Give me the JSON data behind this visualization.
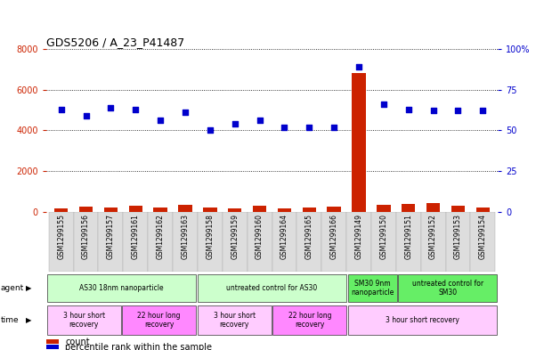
{
  "title": "GDS5206 / A_23_P41487",
  "samples": [
    "GSM1299155",
    "GSM1299156",
    "GSM1299157",
    "GSM1299161",
    "GSM1299162",
    "GSM1299163",
    "GSM1299158",
    "GSM1299159",
    "GSM1299160",
    "GSM1299164",
    "GSM1299165",
    "GSM1299166",
    "GSM1299149",
    "GSM1299150",
    "GSM1299151",
    "GSM1299152",
    "GSM1299153",
    "GSM1299154"
  ],
  "counts": [
    180,
    260,
    220,
    310,
    200,
    340,
    200,
    170,
    290,
    180,
    200,
    240,
    6800,
    340,
    370,
    430,
    300,
    200
  ],
  "percentiles": [
    63,
    59,
    64,
    63,
    56,
    61,
    50,
    54,
    56,
    52,
    52,
    52,
    89,
    66,
    63,
    62,
    62,
    62
  ],
  "ylim_left": [
    0,
    8000
  ],
  "ylim_right": [
    0,
    100
  ],
  "yticks_left": [
    0,
    2000,
    4000,
    6000,
    8000
  ],
  "yticks_right": [
    0,
    25,
    50,
    75,
    100
  ],
  "bar_color": "#cc2200",
  "dot_color": "#0000cc",
  "agent_groups": [
    {
      "label": "AS30 18nm nanoparticle",
      "start": 0,
      "end": 6,
      "color": "#ccffcc"
    },
    {
      "label": "untreated control for AS30",
      "start": 6,
      "end": 12,
      "color": "#ccffcc"
    },
    {
      "label": "SM30 9nm\nnanoparticle",
      "start": 12,
      "end": 14,
      "color": "#66ee66"
    },
    {
      "label": "untreated control for\nSM30",
      "start": 14,
      "end": 18,
      "color": "#66ee66"
    }
  ],
  "time_groups": [
    {
      "label": "3 hour short\nrecovery",
      "start": 0,
      "end": 3,
      "color": "#ffccff"
    },
    {
      "label": "22 hour long\nrecovery",
      "start": 3,
      "end": 6,
      "color": "#ff88ff"
    },
    {
      "label": "3 hour short\nrecovery",
      "start": 6,
      "end": 9,
      "color": "#ffccff"
    },
    {
      "label": "22 hour long\nrecovery",
      "start": 9,
      "end": 12,
      "color": "#ff88ff"
    },
    {
      "label": "3 hour short recovery",
      "start": 12,
      "end": 18,
      "color": "#ffccff"
    }
  ],
  "legend_items": [
    {
      "label": "count",
      "color": "#cc2200"
    },
    {
      "label": "percentile rank within the sample",
      "color": "#0000cc"
    }
  ],
  "agent_label": "agent",
  "time_label": "time",
  "bg_color": "#ffffff",
  "plot_bg": "#ffffff",
  "tick_color_left": "#cc2200",
  "tick_color_right": "#0000cc",
  "grid_color": "#000000"
}
